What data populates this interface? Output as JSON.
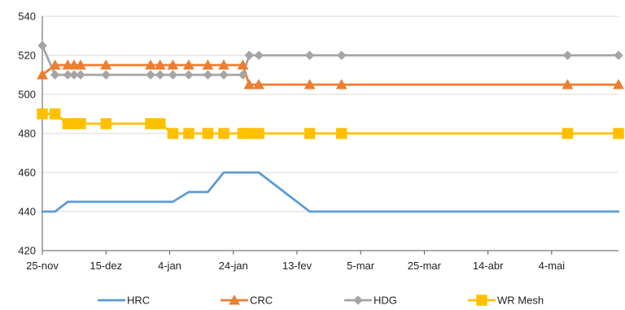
{
  "chart_data": {
    "type": "line",
    "title": "",
    "xlabel": "",
    "ylabel": "",
    "ylim": [
      420,
      540
    ],
    "y_ticks": [
      420,
      440,
      460,
      480,
      500,
      520,
      540
    ],
    "x_tick_labels": [
      "25-nov",
      "15-dez",
      "4-jan",
      "24-jan",
      "13-fev",
      "5-mar",
      "25-mar",
      "14-abr",
      "4-mai"
    ],
    "x_tick_positions": [
      0,
      20,
      40,
      60,
      80,
      100,
      120,
      140,
      160
    ],
    "x_range": [
      0,
      181
    ],
    "grid": "horizontal",
    "legend_position": "bottom",
    "series": [
      {
        "name": "HRC",
        "color": "#5B9BD5",
        "marker": "none",
        "x": [
          0,
          4,
          8,
          10,
          12,
          20,
          34,
          37,
          41,
          46,
          52,
          57,
          63,
          65,
          68,
          84,
          94,
          165,
          181
        ],
        "y": [
          440,
          440,
          445,
          445,
          445,
          445,
          445,
          445,
          445,
          450,
          450,
          460,
          460,
          460,
          460,
          440,
          440,
          440,
          440
        ]
      },
      {
        "name": "CRC",
        "color": "#ED7D31",
        "marker": "triangle",
        "x": [
          0,
          4,
          8,
          10,
          12,
          20,
          34,
          37,
          41,
          46,
          52,
          57,
          63,
          65,
          68,
          84,
          94,
          165,
          181
        ],
        "y": [
          510,
          515,
          515,
          515,
          515,
          515,
          515,
          515,
          515,
          515,
          515,
          515,
          515,
          505,
          505,
          505,
          505,
          505,
          505
        ]
      },
      {
        "name": "HDG",
        "color": "#A5A5A5",
        "marker": "diamond",
        "x": [
          0,
          4,
          8,
          10,
          12,
          20,
          34,
          37,
          41,
          46,
          52,
          57,
          63,
          65,
          68,
          84,
          94,
          165,
          181
        ],
        "y": [
          525,
          510,
          510,
          510,
          510,
          510,
          510,
          510,
          510,
          510,
          510,
          510,
          510,
          520,
          520,
          520,
          520,
          520,
          520
        ]
      },
      {
        "name": "WR Mesh",
        "color": "#FFC000",
        "marker": "square",
        "x": [
          0,
          4,
          8,
          10,
          12,
          20,
          34,
          37,
          41,
          46,
          52,
          57,
          63,
          65,
          68,
          84,
          94,
          165,
          181
        ],
        "y": [
          490,
          490,
          485,
          485,
          485,
          485,
          485,
          485,
          480,
          480,
          480,
          480,
          480,
          480,
          480,
          480,
          480,
          480,
          480
        ]
      }
    ]
  }
}
